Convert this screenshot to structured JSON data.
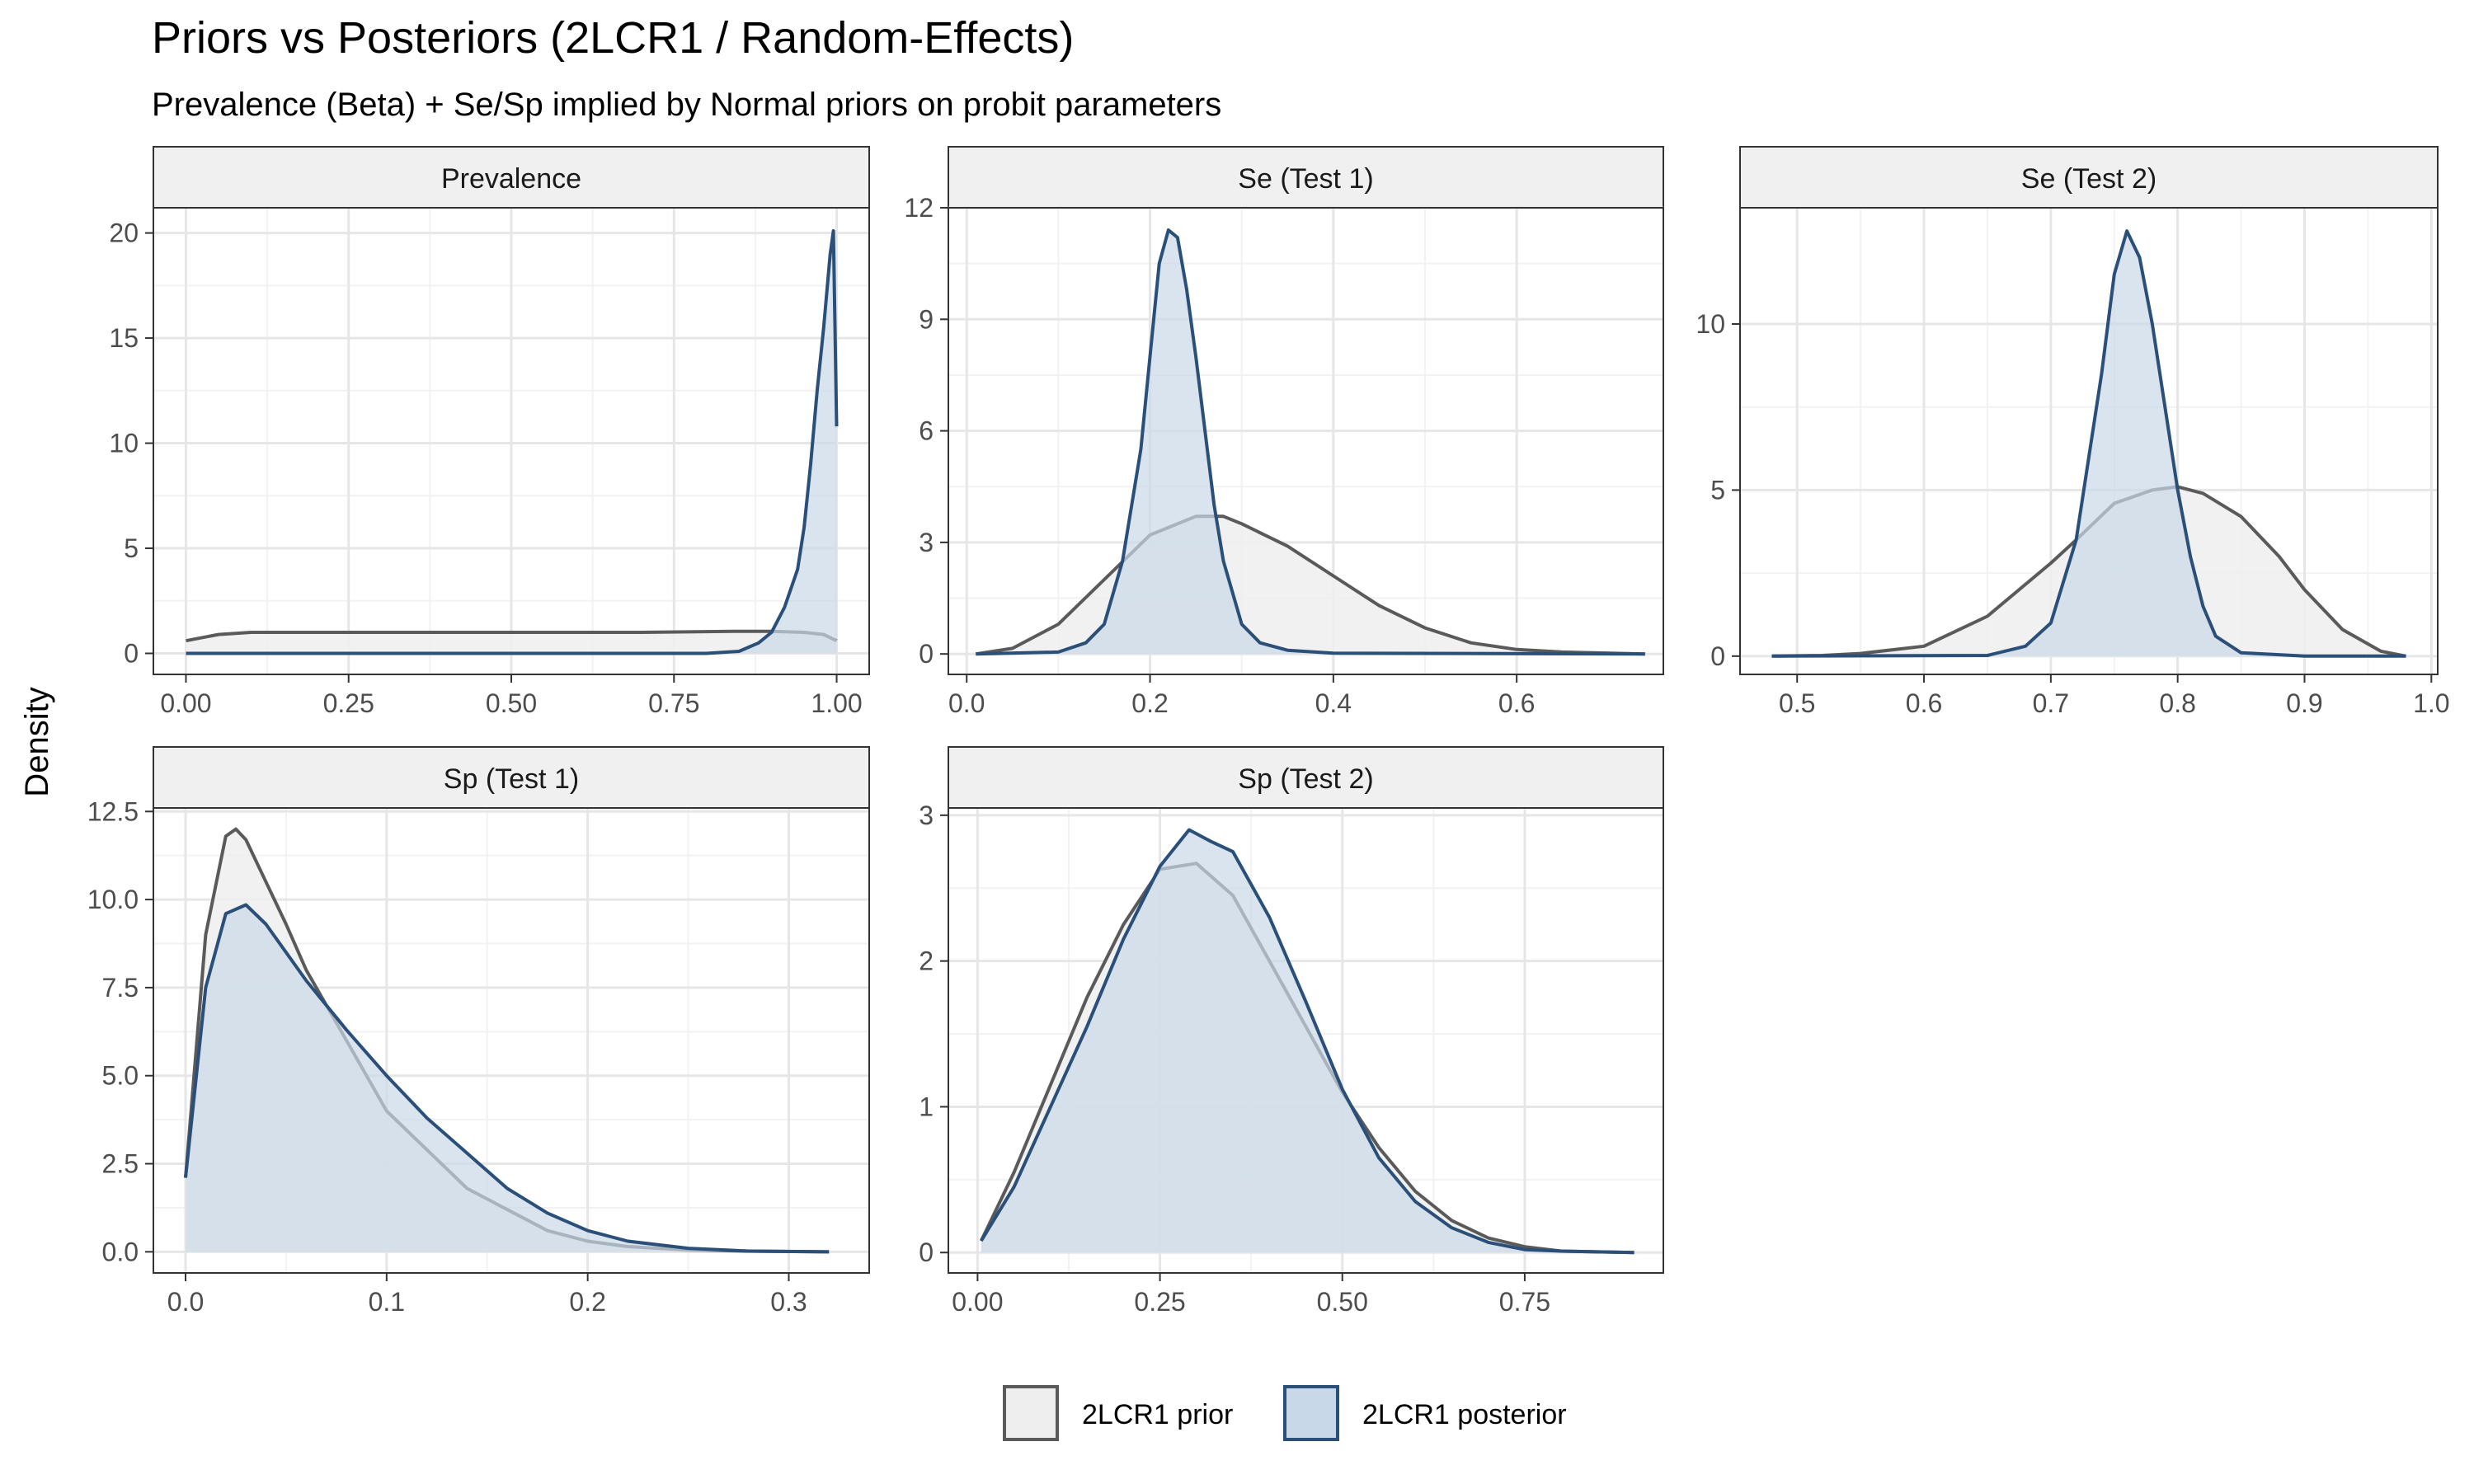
{
  "title": "Priors vs Posteriors (2LCR1 / Random-Effects)",
  "subtitle": "Prevalence (Beta) + Se/Sp implied by Normal priors on probit parameters",
  "ylabel": "Density",
  "colors": {
    "prior_line": "#5a5a5a",
    "prior_fill": "#eeeeee",
    "posterior_line": "#2a4f78",
    "posterior_fill": "#c9d8e8",
    "strip_fill": "#f0f0f0",
    "grid": "#e6e6e6",
    "panel_border": "#333333"
  },
  "legend": {
    "position": "bottom",
    "items": [
      {
        "key": "prior",
        "label": "2LCR1 prior"
      },
      {
        "key": "posterior",
        "label": "2LCR1 posterior"
      }
    ]
  },
  "chart_data": [
    {
      "type": "area",
      "facet": "Prevalence",
      "xlim": [
        -0.05,
        1.05
      ],
      "ylim": [
        -1,
        21.2
      ],
      "xticks": [
        0,
        0.25,
        0.5,
        0.75,
        1
      ],
      "xtick_labels": [
        "0.00",
        "0.25",
        "0.50",
        "0.75",
        "1.00"
      ],
      "yticks": [
        0,
        5,
        10,
        15,
        20
      ],
      "ytick_labels": [
        "0",
        "5",
        "10",
        "15",
        "20"
      ],
      "series": [
        {
          "name": "2LCR1 prior",
          "key": "prior",
          "x": [
            0.0,
            0.05,
            0.1,
            0.2,
            0.3,
            0.5,
            0.7,
            0.85,
            0.9,
            0.95,
            0.98,
            1.0
          ],
          "y": [
            0.6,
            0.9,
            1.0,
            1.0,
            1.0,
            1.0,
            1.0,
            1.05,
            1.05,
            1.0,
            0.9,
            0.6
          ]
        },
        {
          "name": "2LCR1 posterior",
          "key": "posterior",
          "x": [
            0.0,
            0.5,
            0.8,
            0.85,
            0.88,
            0.9,
            0.92,
            0.94,
            0.95,
            0.96,
            0.97,
            0.98,
            0.99,
            0.995,
            1.0
          ],
          "y": [
            0.0,
            0.0,
            0.0,
            0.1,
            0.5,
            1.0,
            2.2,
            4.0,
            6.0,
            9.0,
            12.5,
            15.5,
            19.0,
            20.1,
            10.8
          ]
        }
      ]
    },
    {
      "type": "area",
      "facet": "Se (Test 1)",
      "xlim": [
        -0.02,
        0.76
      ],
      "ylim": [
        -0.55,
        12.0
      ],
      "xticks": [
        0.0,
        0.2,
        0.4,
        0.6
      ],
      "xtick_labels": [
        "0.0",
        "0.2",
        "0.4",
        "0.6"
      ],
      "yticks": [
        0,
        3,
        6,
        9,
        12
      ],
      "ytick_labels": [
        "0",
        "3",
        "6",
        "9",
        "12"
      ],
      "series": [
        {
          "name": "2LCR1 prior",
          "key": "prior",
          "x": [
            0.01,
            0.05,
            0.1,
            0.15,
            0.2,
            0.25,
            0.28,
            0.3,
            0.35,
            0.4,
            0.45,
            0.5,
            0.55,
            0.6,
            0.65,
            0.74
          ],
          "y": [
            0.0,
            0.15,
            0.8,
            2.0,
            3.2,
            3.7,
            3.7,
            3.5,
            2.9,
            2.1,
            1.3,
            0.7,
            0.3,
            0.12,
            0.05,
            0.0
          ]
        },
        {
          "name": "2LCR1 posterior",
          "key": "posterior",
          "x": [
            0.01,
            0.1,
            0.13,
            0.15,
            0.17,
            0.19,
            0.2,
            0.21,
            0.22,
            0.23,
            0.24,
            0.25,
            0.26,
            0.27,
            0.28,
            0.3,
            0.32,
            0.35,
            0.4,
            0.74
          ],
          "y": [
            0.0,
            0.05,
            0.3,
            0.8,
            2.5,
            5.5,
            8.0,
            10.5,
            11.4,
            11.2,
            9.8,
            8.0,
            6.0,
            4.0,
            2.5,
            0.8,
            0.3,
            0.1,
            0.02,
            0.0
          ]
        }
      ]
    },
    {
      "type": "area",
      "facet": "Se (Test 2)",
      "xlim": [
        0.455,
        1.005
      ],
      "ylim": [
        -0.55,
        13.5
      ],
      "xticks": [
        0.5,
        0.6,
        0.7,
        0.8,
        0.9,
        1.0
      ],
      "xtick_labels": [
        "0.5",
        "0.6",
        "0.7",
        "0.8",
        "0.9",
        "1.0"
      ],
      "yticks": [
        0,
        5,
        10
      ],
      "ytick_labels": [
        "0",
        "5",
        "10"
      ],
      "series": [
        {
          "name": "2LCR1 prior",
          "key": "prior",
          "x": [
            0.48,
            0.52,
            0.55,
            0.6,
            0.65,
            0.7,
            0.72,
            0.75,
            0.78,
            0.8,
            0.82,
            0.85,
            0.88,
            0.9,
            0.93,
            0.96,
            0.98
          ],
          "y": [
            0.0,
            0.02,
            0.08,
            0.3,
            1.2,
            2.8,
            3.5,
            4.6,
            5.0,
            5.1,
            4.9,
            4.2,
            3.0,
            2.0,
            0.8,
            0.15,
            0.0
          ]
        },
        {
          "name": "2LCR1 posterior",
          "key": "posterior",
          "x": [
            0.48,
            0.65,
            0.68,
            0.7,
            0.72,
            0.73,
            0.74,
            0.75,
            0.76,
            0.77,
            0.78,
            0.79,
            0.8,
            0.81,
            0.82,
            0.83,
            0.85,
            0.9,
            0.98
          ],
          "y": [
            0.0,
            0.02,
            0.3,
            1.0,
            3.5,
            6.0,
            8.5,
            11.5,
            12.8,
            12.0,
            10.0,
            7.5,
            5.0,
            3.0,
            1.5,
            0.6,
            0.1,
            0.0,
            0.0
          ]
        }
      ]
    },
    {
      "type": "area",
      "facet": "Sp (Test 1)",
      "xlim": [
        -0.016,
        0.34
      ],
      "ylim": [
        -0.6,
        12.6
      ],
      "xticks": [
        0.0,
        0.1,
        0.2,
        0.3
      ],
      "xtick_labels": [
        "0.0",
        "0.1",
        "0.2",
        "0.3"
      ],
      "yticks": [
        0,
        2.5,
        5,
        7.5,
        10,
        12.5
      ],
      "ytick_labels": [
        "0.0",
        "2.5",
        "5.0",
        "7.5",
        "10.0",
        "12.5"
      ],
      "series": [
        {
          "name": "2LCR1 prior",
          "key": "prior",
          "x": [
            0.0,
            0.01,
            0.02,
            0.025,
            0.03,
            0.04,
            0.05,
            0.06,
            0.08,
            0.1,
            0.12,
            0.14,
            0.16,
            0.18,
            0.2,
            0.22,
            0.25,
            0.28,
            0.32
          ],
          "y": [
            2.1,
            9.0,
            11.8,
            12.0,
            11.7,
            10.5,
            9.3,
            8.0,
            6.0,
            4.0,
            2.9,
            1.8,
            1.2,
            0.6,
            0.3,
            0.15,
            0.05,
            0.02,
            0.0
          ]
        },
        {
          "name": "2LCR1 posterior",
          "key": "posterior",
          "x": [
            0.0,
            0.01,
            0.02,
            0.03,
            0.04,
            0.05,
            0.06,
            0.08,
            0.1,
            0.12,
            0.14,
            0.16,
            0.18,
            0.2,
            0.22,
            0.25,
            0.28,
            0.32
          ],
          "y": [
            2.1,
            7.5,
            9.6,
            9.85,
            9.3,
            8.5,
            7.7,
            6.3,
            5.0,
            3.8,
            2.8,
            1.8,
            1.1,
            0.6,
            0.3,
            0.1,
            0.02,
            0.0
          ]
        }
      ]
    },
    {
      "type": "area",
      "facet": "Sp (Test 2)",
      "xlim": [
        -0.04,
        0.94
      ],
      "ylim": [
        -0.14,
        3.05
      ],
      "xticks": [
        0,
        0.25,
        0.5,
        0.75
      ],
      "xtick_labels": [
        "0.00",
        "0.25",
        "0.50",
        "0.75"
      ],
      "yticks": [
        0,
        1,
        2,
        3
      ],
      "ytick_labels": [
        "0",
        "1",
        "2",
        "3"
      ],
      "series": [
        {
          "name": "2LCR1 prior",
          "key": "prior",
          "x": [
            0.005,
            0.05,
            0.1,
            0.15,
            0.2,
            0.25,
            0.3,
            0.35,
            0.4,
            0.45,
            0.5,
            0.55,
            0.6,
            0.65,
            0.7,
            0.75,
            0.8,
            0.9
          ],
          "y": [
            0.08,
            0.55,
            1.15,
            1.75,
            2.25,
            2.63,
            2.67,
            2.45,
            2.0,
            1.55,
            1.1,
            0.72,
            0.42,
            0.22,
            0.1,
            0.04,
            0.01,
            0.0
          ]
        },
        {
          "name": "2LCR1 posterior",
          "key": "posterior",
          "x": [
            0.005,
            0.05,
            0.1,
            0.15,
            0.2,
            0.25,
            0.29,
            0.32,
            0.35,
            0.4,
            0.45,
            0.5,
            0.55,
            0.6,
            0.65,
            0.7,
            0.75,
            0.8,
            0.9
          ],
          "y": [
            0.08,
            0.45,
            1.0,
            1.55,
            2.15,
            2.65,
            2.9,
            2.82,
            2.75,
            2.3,
            1.72,
            1.12,
            0.65,
            0.35,
            0.17,
            0.07,
            0.02,
            0.01,
            0.0
          ]
        }
      ]
    }
  ]
}
